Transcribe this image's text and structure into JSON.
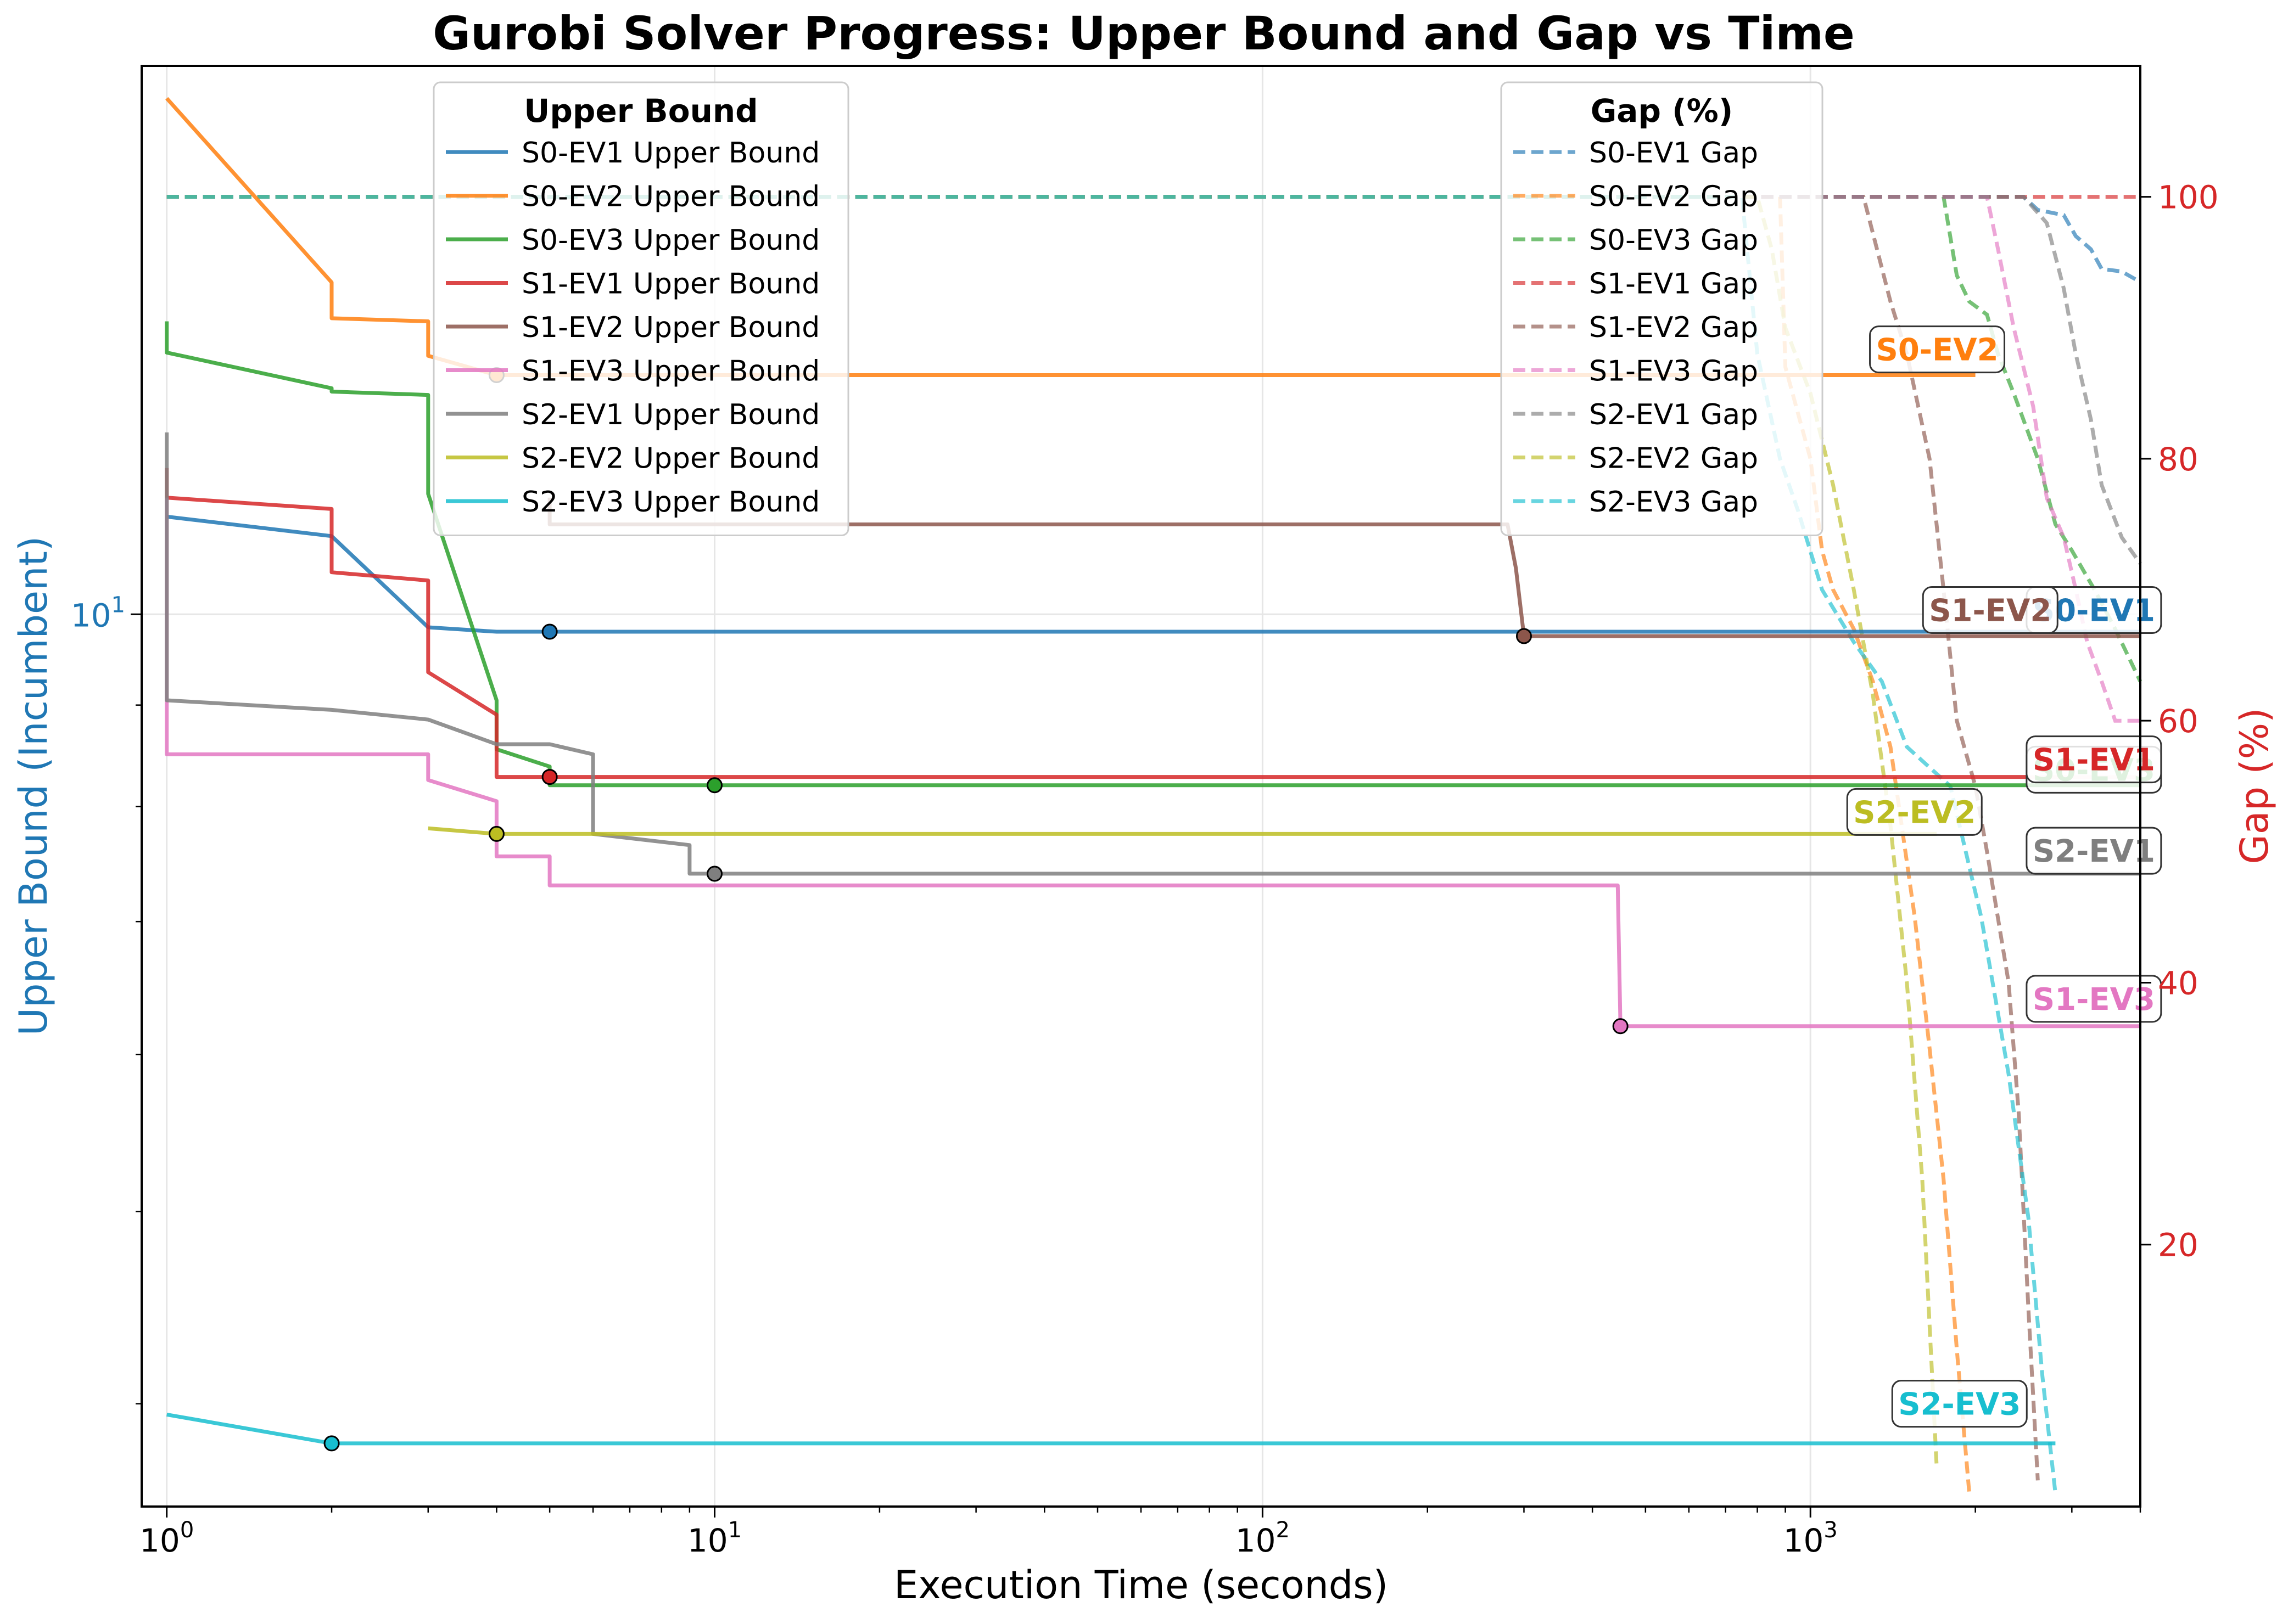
{
  "chart_data": {
    "type": "line",
    "title": "Gurobi Solver Progress: Upper Bound and Gap vs Time",
    "xlabel": "Execution Time (seconds)",
    "ylabel_left": "Upper Bound (Incumbent)",
    "ylabel_right": "Gap (%)",
    "x_scale": "log",
    "y_left_scale": "log",
    "xlim": [
      0.9,
      4000
    ],
    "ylim_left": [
      3.55,
      18.9
    ],
    "ylim_right": [
      0,
      110
    ],
    "x_tick_labels": [
      "10^0",
      "10^1",
      "10^2",
      "10^3"
    ],
    "y_left_tick_labels": [
      "10^1"
    ],
    "y_right_tick_labels": [
      "20",
      "40",
      "60",
      "80",
      "100"
    ],
    "grid": true,
    "left_axis_color": "#1f77b4",
    "right_axis_color": "#d62728",
    "legend_upper_bound": {
      "title": "Upper Bound",
      "placement": "upper-center-left",
      "items": [
        "S0-EV1 Upper Bound",
        "S0-EV2 Upper Bound",
        "S0-EV3 Upper Bound",
        "S1-EV1 Upper Bound",
        "S1-EV2 Upper Bound",
        "S1-EV3 Upper Bound",
        "S2-EV1 Upper Bound",
        "S2-EV2 Upper Bound",
        "S2-EV3 Upper Bound"
      ]
    },
    "legend_gap": {
      "title": "Gap (%)",
      "placement": "upper-right",
      "items": [
        "S0-EV1 Gap",
        "S0-EV2 Gap",
        "S0-EV3 Gap",
        "S1-EV1 Gap",
        "S1-EV2 Gap",
        "S1-EV3 Gap",
        "S2-EV1 Gap",
        "S2-EV2 Gap",
        "S2-EV3 Gap"
      ]
    },
    "upper_bound_series": [
      {
        "name": "S0-EV1",
        "color": "#1f77b4",
        "label": "S0-EV1",
        "label_x": 2550,
        "label_y": 10.05,
        "marker": [
          5,
          9.8
        ],
        "points": [
          [
            1,
            11.2
          ],
          [
            2,
            10.95
          ],
          [
            3,
            9.85
          ],
          [
            4,
            9.8
          ],
          [
            5,
            9.8
          ],
          [
            4000,
            9.8
          ]
        ]
      },
      {
        "name": "S0-EV2",
        "color": "#ff7f0e",
        "label": "S0-EV2",
        "label_x": 1320,
        "label_y": 13.6,
        "marker": [
          4,
          13.2
        ],
        "points": [
          [
            1,
            18.2
          ],
          [
            2,
            14.7
          ],
          [
            2,
            14.1
          ],
          [
            3,
            14.05
          ],
          [
            3,
            13.5
          ],
          [
            4,
            13.2
          ],
          [
            2000,
            13.2
          ]
        ]
      },
      {
        "name": "S0-EV3",
        "color": "#2ca02c",
        "label": "S0-EV3",
        "label_x": 2550,
        "label_y": 8.35,
        "marker": [
          10,
          8.2
        ],
        "points": [
          [
            1,
            14.05
          ],
          [
            1,
            13.55
          ],
          [
            2,
            13.0
          ],
          [
            2,
            12.95
          ],
          [
            3,
            12.9
          ],
          [
            3,
            11.5
          ],
          [
            4,
            9.05
          ],
          [
            4,
            8.55
          ],
          [
            5,
            8.38
          ],
          [
            5,
            8.2
          ],
          [
            4000,
            8.2
          ]
        ]
      },
      {
        "name": "S1-EV1",
        "color": "#d62728",
        "label": "S1-EV1",
        "label_x": 2550,
        "label_y": 8.45,
        "marker": [
          5,
          8.28
        ],
        "points": [
          [
            1,
            11.85
          ],
          [
            1,
            11.45
          ],
          [
            2,
            11.3
          ],
          [
            2,
            10.5
          ],
          [
            3,
            10.4
          ],
          [
            3,
            9.35
          ],
          [
            4,
            8.9
          ],
          [
            4,
            8.28
          ],
          [
            4000,
            8.28
          ]
        ]
      },
      {
        "name": "S1-EV2",
        "color": "#8c564b",
        "label": "S1-EV2",
        "label_x": 1650,
        "label_y": 10.05,
        "marker": [
          300,
          9.75
        ],
        "points": [
          [
            5,
            11.45
          ],
          [
            5,
            11.1
          ],
          [
            280,
            11.1
          ],
          [
            290,
            10.55
          ],
          [
            300,
            9.75
          ],
          [
            4000,
            9.75
          ]
        ]
      },
      {
        "name": "S1-EV3",
        "color": "#e377c2",
        "label": "S1-EV3",
        "label_x": 2550,
        "label_y": 6.4,
        "marker": [
          450,
          6.2
        ],
        "points": [
          [
            1,
            11.45
          ],
          [
            1,
            8.5
          ],
          [
            3,
            8.5
          ],
          [
            3,
            8.25
          ],
          [
            4,
            8.05
          ],
          [
            4,
            7.55
          ],
          [
            5,
            7.55
          ],
          [
            5,
            7.3
          ],
          [
            445,
            7.3
          ],
          [
            450,
            6.2
          ],
          [
            4000,
            6.2
          ]
        ]
      },
      {
        "name": "S2-EV1",
        "color": "#7f7f7f",
        "label": "S2-EV1",
        "label_x": 2550,
        "label_y": 7.6,
        "marker": [
          10,
          7.4
        ],
        "points": [
          [
            1,
            12.35
          ],
          [
            1,
            9.05
          ],
          [
            2,
            8.95
          ],
          [
            3,
            8.85
          ],
          [
            4,
            8.6
          ],
          [
            5,
            8.6
          ],
          [
            6,
            8.5
          ],
          [
            6,
            7.75
          ],
          [
            9,
            7.65
          ],
          [
            9,
            7.4
          ],
          [
            4000,
            7.4
          ]
        ]
      },
      {
        "name": "S2-EV2",
        "color": "#bcbd22",
        "label": "S2-EV2",
        "label_x": 1200,
        "label_y": 7.95,
        "marker": [
          4,
          7.75
        ],
        "points": [
          [
            3,
            7.8
          ],
          [
            4,
            7.75
          ],
          [
            1700,
            7.75
          ]
        ]
      },
      {
        "name": "S2-EV3",
        "color": "#17becf",
        "label": "S2-EV3",
        "label_x": 1450,
        "label_y": 4.0,
        "marker": [
          2,
          3.82
        ],
        "points": [
          [
            1,
            3.95
          ],
          [
            2,
            3.82
          ],
          [
            2800,
            3.82
          ]
        ]
      }
    ],
    "gap_series": [
      {
        "name": "S0-EV1",
        "color": "#1f77b4",
        "points": [
          [
            1,
            100
          ],
          [
            2450,
            100
          ],
          [
            2600,
            99
          ],
          [
            2900,
            98.6
          ],
          [
            3050,
            97
          ],
          [
            3250,
            96
          ],
          [
            3400,
            94.5
          ],
          [
            3700,
            94.3
          ],
          [
            4000,
            93.5
          ]
        ]
      },
      {
        "name": "S0-EV2",
        "color": "#ff7f0e",
        "points": [
          [
            1,
            100
          ],
          [
            880,
            100
          ],
          [
            900,
            87
          ],
          [
            1000,
            80
          ],
          [
            1050,
            73
          ],
          [
            1100,
            70
          ],
          [
            1200,
            67
          ],
          [
            1300,
            63
          ],
          [
            1400,
            58
          ],
          [
            1550,
            45
          ],
          [
            1650,
            35
          ],
          [
            1750,
            25
          ],
          [
            1850,
            12
          ],
          [
            1950,
            1
          ]
        ]
      },
      {
        "name": "S0-EV3",
        "color": "#2ca02c",
        "points": [
          [
            1,
            100
          ],
          [
            1750,
            100
          ],
          [
            1850,
            94
          ],
          [
            1950,
            92
          ],
          [
            2100,
            91
          ],
          [
            2200,
            88
          ],
          [
            2350,
            85
          ],
          [
            2600,
            80
          ],
          [
            2800,
            75
          ],
          [
            3000,
            73
          ],
          [
            3300,
            70
          ],
          [
            3600,
            67
          ],
          [
            4000,
            63
          ]
        ]
      },
      {
        "name": "S1-EV1",
        "color": "#d62728",
        "points": [
          [
            1,
            100
          ],
          [
            4000,
            100
          ]
        ]
      },
      {
        "name": "S1-EV2",
        "color": "#8c564b",
        "points": [
          [
            1,
            100
          ],
          [
            1250,
            100
          ],
          [
            1400,
            92
          ],
          [
            1500,
            88
          ],
          [
            1650,
            80
          ],
          [
            1750,
            70
          ],
          [
            1850,
            60
          ],
          [
            2000,
            55
          ],
          [
            2100,
            50
          ],
          [
            2300,
            40
          ],
          [
            2400,
            30
          ],
          [
            2500,
            15
          ],
          [
            2600,
            2
          ]
        ]
      },
      {
        "name": "S1-EV3",
        "color": "#e377c2",
        "points": [
          [
            1,
            100
          ],
          [
            2100,
            100
          ],
          [
            2200,
            96
          ],
          [
            2350,
            90
          ],
          [
            2550,
            84
          ],
          [
            2700,
            77
          ],
          [
            2900,
            74
          ],
          [
            3050,
            70
          ],
          [
            3200,
            66
          ],
          [
            3400,
            63
          ],
          [
            3600,
            60
          ],
          [
            4000,
            60
          ]
        ]
      },
      {
        "name": "S2-EV1",
        "color": "#7f7f7f",
        "points": [
          [
            1,
            100
          ],
          [
            2450,
            100
          ],
          [
            2700,
            98
          ],
          [
            2900,
            93
          ],
          [
            3050,
            88
          ],
          [
            3250,
            83
          ],
          [
            3400,
            78
          ],
          [
            3700,
            74
          ],
          [
            4000,
            72
          ]
        ]
      },
      {
        "name": "S2-EV2",
        "color": "#bcbd22",
        "points": [
          [
            1,
            100
          ],
          [
            800,
            100
          ],
          [
            850,
            96
          ],
          [
            900,
            90
          ],
          [
            1000,
            85
          ],
          [
            1100,
            78
          ],
          [
            1200,
            70
          ],
          [
            1300,
            62
          ],
          [
            1400,
            52
          ],
          [
            1500,
            40
          ],
          [
            1600,
            25
          ],
          [
            1700,
            3
          ]
        ]
      },
      {
        "name": "S2-EV3",
        "color": "#17becf",
        "points": [
          [
            1,
            100
          ],
          [
            750,
            100
          ],
          [
            800,
            88
          ],
          [
            880,
            80
          ],
          [
            950,
            76
          ],
          [
            1050,
            70
          ],
          [
            1200,
            66
          ],
          [
            1350,
            63
          ],
          [
            1500,
            58
          ],
          [
            1800,
            55
          ],
          [
            2050,
            45
          ],
          [
            2300,
            33
          ],
          [
            2500,
            22
          ],
          [
            2650,
            10
          ],
          [
            2800,
            1
          ]
        ]
      }
    ]
  }
}
